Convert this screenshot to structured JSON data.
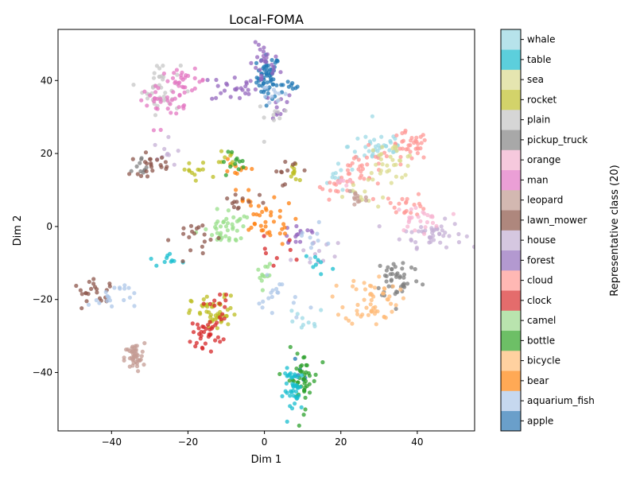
{
  "chart_data": {
    "type": "scatter",
    "title": "Local-FOMA",
    "xlabel": "Dim 1",
    "ylabel": "Dim 2",
    "xlim": [
      -54,
      55
    ],
    "ylim": [
      -56,
      54
    ],
    "x_ticks": [
      -40,
      -20,
      0,
      20,
      40
    ],
    "y_ticks": [
      -40,
      -20,
      0,
      20,
      40
    ],
    "x_tick_labels": [
      "−40",
      "−20",
      "0",
      "20",
      "40"
    ],
    "y_tick_labels": [
      "−40",
      "−20",
      "0",
      "20",
      "40"
    ],
    "grid": false,
    "colorbar": {
      "label": "Representative class (20)",
      "position": "right",
      "classes": [
        {
          "name": "apple",
          "color": "#6a9fca"
        },
        {
          "name": "aquarium_fish",
          "color": "#c6d8ef"
        },
        {
          "name": "bear",
          "color": "#ffa955"
        },
        {
          "name": "bicycle",
          "color": "#ffd1a0"
        },
        {
          "name": "bottle",
          "color": "#6dbf66"
        },
        {
          "name": "camel",
          "color": "#b9e4ae"
        },
        {
          "name": "clock",
          "color": "#e46c6c"
        },
        {
          "name": "cloud",
          "color": "#ffb8b4"
        },
        {
          "name": "forest",
          "color": "#b399d0"
        },
        {
          "name": "house",
          "color": "#d5c7e0"
        },
        {
          "name": "lawn_mower",
          "color": "#ae877d"
        },
        {
          "name": "leopard",
          "color": "#d3b8b1"
        },
        {
          "name": "man",
          "color": "#eb9fd6"
        },
        {
          "name": "orange",
          "color": "#f6c9dd"
        },
        {
          "name": "pickup_truck",
          "color": "#a8a8a8"
        },
        {
          "name": "plain",
          "color": "#d6d6d6"
        },
        {
          "name": "rocket",
          "color": "#d3d36a"
        },
        {
          "name": "sea",
          "color": "#e5e5b0"
        },
        {
          "name": "table",
          "color": "#5ccfdc"
        },
        {
          "name": "whale",
          "color": "#b7e3eb"
        }
      ]
    },
    "clusters": [
      {
        "name": "apple",
        "color": "#1f77b4",
        "cx": 1,
        "cy": 41,
        "sx": 1.5,
        "sy": 3,
        "n": 60
      },
      {
        "name": "apple",
        "color": "#1f77b4",
        "cx": 6,
        "cy": 38,
        "sx": 1.5,
        "sy": 1,
        "n": 10
      },
      {
        "name": "apple",
        "color": "#1f77b4",
        "cx": 9,
        "cy": -40,
        "sx": 1.5,
        "sy": 1.5,
        "n": 6
      },
      {
        "name": "forest",
        "color": "#9467bd",
        "cx": 0,
        "cy": 44,
        "sx": 2,
        "sy": 3,
        "n": 25
      },
      {
        "name": "forest",
        "color": "#9467bd",
        "cx": -8,
        "cy": 38,
        "sx": 3,
        "sy": 2,
        "n": 25
      },
      {
        "name": "forest",
        "color": "#9467bd",
        "cx": 2,
        "cy": 33,
        "sx": 3,
        "sy": 2,
        "n": 12
      },
      {
        "name": "forest",
        "color": "#9467bd",
        "cx": 9,
        "cy": -2,
        "sx": 3,
        "sy": 2,
        "n": 15
      },
      {
        "name": "house",
        "color": "#c5b0d5",
        "cx": 44,
        "cy": -2,
        "sx": 4,
        "sy": 1.8,
        "n": 45
      },
      {
        "name": "house",
        "color": "#c5b0d5",
        "cx": -25,
        "cy": 20,
        "sx": 2,
        "sy": 2,
        "n": 10
      },
      {
        "name": "house",
        "color": "#c5b0d5",
        "cx": 13,
        "cy": -7,
        "sx": 3,
        "sy": 3,
        "n": 12
      },
      {
        "name": "plain",
        "color": "#c7c7c7",
        "cx": -27,
        "cy": 38,
        "sx": 2.5,
        "sy": 3.5,
        "n": 40
      },
      {
        "name": "plain",
        "color": "#c7c7c7",
        "cx": 2,
        "cy": 30,
        "sx": 2,
        "sy": 2,
        "n": 10
      },
      {
        "name": "man",
        "color": "#e377c2",
        "cx": -21,
        "cy": 40,
        "sx": 3,
        "sy": 1.5,
        "n": 30
      },
      {
        "name": "man",
        "color": "#e377c2",
        "cx": -29,
        "cy": 35,
        "sx": 2,
        "sy": 1.5,
        "n": 18
      },
      {
        "name": "man",
        "color": "#e377c2",
        "cx": -23,
        "cy": 31,
        "sx": 3,
        "sy": 2.5,
        "n": 12
      },
      {
        "name": "whale",
        "color": "#9edae5",
        "cx": 30,
        "cy": 22,
        "sx": 4,
        "sy": 2.5,
        "n": 40
      },
      {
        "name": "whale",
        "color": "#9edae5",
        "cx": 20,
        "cy": 13,
        "sx": 3,
        "sy": 2,
        "n": 12
      },
      {
        "name": "whale",
        "color": "#9edae5",
        "cx": 10,
        "cy": -26,
        "sx": 3,
        "sy": 2,
        "n": 10
      },
      {
        "name": "cloud",
        "color": "#ff9896",
        "cx": 38,
        "cy": 22,
        "sx": 2.5,
        "sy": 2,
        "n": 35
      },
      {
        "name": "cloud",
        "color": "#ff9896",
        "cx": 26,
        "cy": 15,
        "sx": 4,
        "sy": 3,
        "n": 35
      },
      {
        "name": "cloud",
        "color": "#ff9896",
        "cx": 37,
        "cy": 6,
        "sx": 3,
        "sy": 1.5,
        "n": 20
      },
      {
        "name": "cloud",
        "color": "#ff9896",
        "cx": 19,
        "cy": 11,
        "sx": 2,
        "sy": 1,
        "n": 10
      },
      {
        "name": "sea",
        "color": "#dbdb8d",
        "cx": 33,
        "cy": 18,
        "sx": 3.5,
        "sy": 2.5,
        "n": 35
      },
      {
        "name": "sea",
        "color": "#dbdb8d",
        "cx": 25,
        "cy": 8,
        "sx": 2,
        "sy": 1.5,
        "n": 10
      },
      {
        "name": "orange",
        "color": "#f7b6d2",
        "cx": 40,
        "cy": 2,
        "sx": 3,
        "sy": 1.8,
        "n": 25
      },
      {
        "name": "orange",
        "color": "#f7b6d2",
        "cx": 20,
        "cy": 12,
        "sx": 1,
        "sy": 1,
        "n": 6
      },
      {
        "name": "leopard",
        "color": "#c49c94",
        "cx": -34,
        "cy": -36,
        "sx": 1.3,
        "sy": 2,
        "n": 45
      },
      {
        "name": "leopard",
        "color": "#c49c94",
        "cx": 24,
        "cy": 8,
        "sx": 1.5,
        "sy": 2,
        "n": 12
      },
      {
        "name": "pickup_truck",
        "color": "#7f7f7f",
        "cx": 35,
        "cy": -14,
        "sx": 3,
        "sy": 3,
        "n": 45
      },
      {
        "name": "pickup_truck",
        "color": "#7f7f7f",
        "cx": -32,
        "cy": 15,
        "sx": 1.5,
        "sy": 2,
        "n": 10
      },
      {
        "name": "bicycle",
        "color": "#ffbb78",
        "cx": 28,
        "cy": -20,
        "sx": 3.5,
        "sy": 3.5,
        "n": 55
      },
      {
        "name": "bear",
        "color": "#ff7f0e",
        "cx": 0,
        "cy": 1,
        "sx": 4,
        "sy": 3,
        "n": 30
      },
      {
        "name": "bear",
        "color": "#ff7f0e",
        "cx": -8,
        "cy": 15,
        "sx": 2,
        "sy": 2,
        "n": 10
      },
      {
        "name": "bear",
        "color": "#ff7f0e",
        "cx": -5,
        "cy": 7,
        "sx": 2,
        "sy": 2,
        "n": 10
      },
      {
        "name": "camel",
        "color": "#98df8a",
        "cx": -9,
        "cy": 0,
        "sx": 2,
        "sy": 2.5,
        "n": 30
      },
      {
        "name": "camel",
        "color": "#98df8a",
        "cx": -14,
        "cy": -2,
        "sx": 2,
        "sy": 1,
        "n": 10
      },
      {
        "name": "camel",
        "color": "#98df8a",
        "cx": 0,
        "cy": -13,
        "sx": 1,
        "sy": 2,
        "n": 12
      },
      {
        "name": "rocket",
        "color": "#bcbd22",
        "cx": -13,
        "cy": -24,
        "sx": 3,
        "sy": 2.5,
        "n": 50
      },
      {
        "name": "rocket",
        "color": "#bcbd22",
        "cx": -18,
        "cy": 15,
        "sx": 2,
        "sy": 1.5,
        "n": 12
      },
      {
        "name": "rocket",
        "color": "#bcbd22",
        "cx": 8,
        "cy": 15,
        "sx": 1.2,
        "sy": 2,
        "n": 10
      },
      {
        "name": "rocket",
        "color": "#bcbd22",
        "cx": -10,
        "cy": 19,
        "sx": 1.2,
        "sy": 1.5,
        "n": 8
      },
      {
        "name": "clock",
        "color": "#d62728",
        "cx": -15,
        "cy": -29,
        "sx": 2,
        "sy": 2,
        "n": 35
      },
      {
        "name": "clock",
        "color": "#d62728",
        "cx": -12,
        "cy": -22,
        "sx": 2,
        "sy": 2,
        "n": 12
      },
      {
        "name": "clock",
        "color": "#d62728",
        "cx": 2,
        "cy": -7,
        "sx": 3,
        "sy": 2,
        "n": 8
      },
      {
        "name": "bottle",
        "color": "#2ca02c",
        "cx": 10,
        "cy": -42,
        "sx": 2,
        "sy": 4,
        "n": 45
      },
      {
        "name": "bottle",
        "color": "#2ca02c",
        "cx": -9,
        "cy": 18,
        "sx": 2,
        "sy": 1.5,
        "n": 12
      },
      {
        "name": "table",
        "color": "#17becf",
        "cx": 8,
        "cy": -45,
        "sx": 1.5,
        "sy": 3,
        "n": 40
      },
      {
        "name": "table",
        "color": "#17becf",
        "cx": -24,
        "cy": -9,
        "sx": 1.5,
        "sy": 1,
        "n": 10
      },
      {
        "name": "table",
        "color": "#17becf",
        "cx": 14,
        "cy": -10,
        "sx": 1.5,
        "sy": 1.5,
        "n": 8
      },
      {
        "name": "lawn_mower",
        "color": "#8c564b",
        "cx": -30,
        "cy": 17,
        "sx": 2.5,
        "sy": 1.5,
        "n": 22
      },
      {
        "name": "lawn_mower",
        "color": "#8c564b",
        "cx": -44,
        "cy": -18,
        "sx": 3,
        "sy": 1.5,
        "n": 22
      },
      {
        "name": "lawn_mower",
        "color": "#8c564b",
        "cx": -18,
        "cy": -3,
        "sx": 3,
        "sy": 3,
        "n": 18
      },
      {
        "name": "lawn_mower",
        "color": "#8c564b",
        "cx": -6,
        "cy": 6,
        "sx": 3,
        "sy": 2,
        "n": 12
      },
      {
        "name": "lawn_mower",
        "color": "#8c564b",
        "cx": 5,
        "cy": 16,
        "sx": 2,
        "sy": 2,
        "n": 10
      },
      {
        "name": "aquarium_fish",
        "color": "#aec7e8",
        "cx": -40,
        "cy": -19,
        "sx": 3,
        "sy": 2,
        "n": 20
      },
      {
        "name": "aquarium_fish",
        "color": "#aec7e8",
        "cx": 4,
        "cy": -20,
        "sx": 3,
        "sy": 3,
        "n": 18
      },
      {
        "name": "aquarium_fish",
        "color": "#aec7e8",
        "cx": 2,
        "cy": 36,
        "sx": 2,
        "sy": 2,
        "n": 10
      },
      {
        "name": "aquarium_fish",
        "color": "#aec7e8",
        "cx": 12,
        "cy": -4,
        "sx": 2,
        "sy": 2,
        "n": 10
      }
    ]
  }
}
